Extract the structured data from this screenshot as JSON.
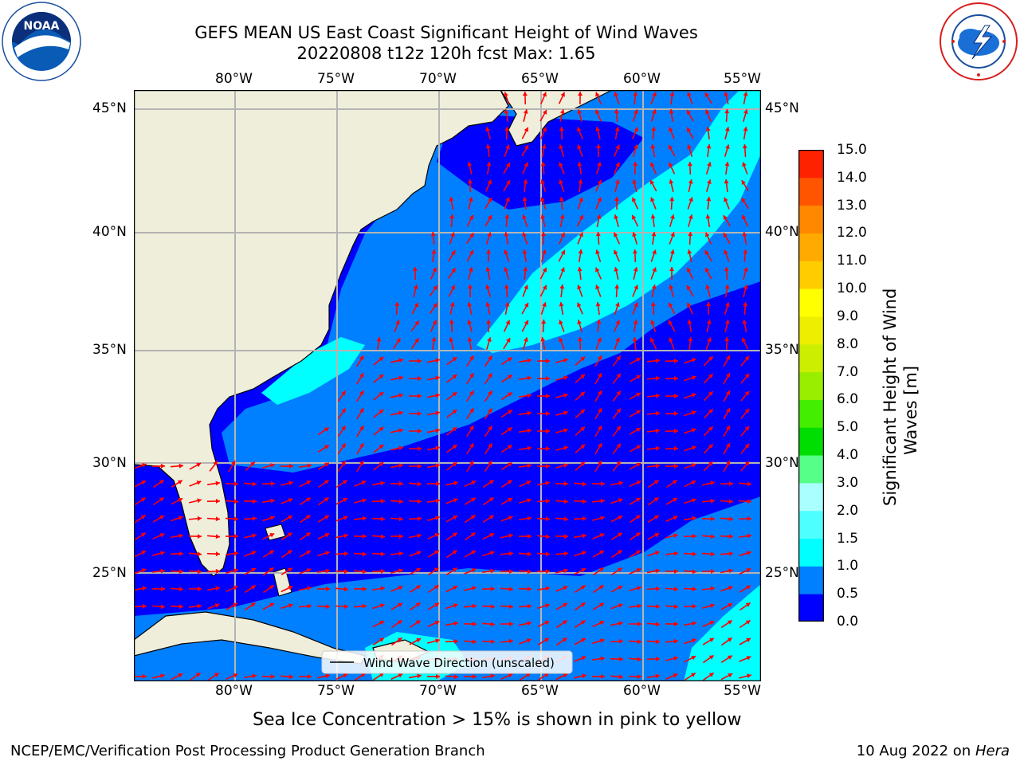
{
  "header": {
    "title_line1": "GEFS MEAN US East Coast Significant Height of Wind Waves",
    "title_line2": "20220808 t12z 120h fcst   Max: 1.65"
  },
  "logos": {
    "left": "NOAA",
    "left_ring_text": "NATIONAL OCEANIC AND ATMOSPHERIC ADMINISTRATION · U.S. DEPARTMENT OF COMMERCE",
    "right_ring_text": "NATIONAL WEATHER SERVICE"
  },
  "map": {
    "lon_labels": [
      "80°W",
      "75°W",
      "70°W",
      "65°W",
      "60°W",
      "55°W"
    ],
    "lat_labels": [
      "45°N",
      "40°N",
      "35°N",
      "30°N",
      "25°N"
    ],
    "legend_label": "Wind Wave Direction (unscaled)",
    "colors": {
      "land": "#efeedb",
      "ocean_low": "#0000ff",
      "ocean_mid": "#0080ff",
      "ocean_high": "#00ffff",
      "arrows": "#ff0000",
      "grid": "#b4b4b4"
    }
  },
  "colorbar": {
    "label": "Significant Height of Wind Waves [m]",
    "ticks": [
      "15.0",
      "14.0",
      "13.0",
      "12.0",
      "11.0",
      "10.0",
      "9.0",
      "8.0",
      "7.0",
      "6.0",
      "5.0",
      "4.0",
      "3.0",
      "2.0",
      "1.5",
      "1.0",
      "0.5",
      "0.0"
    ],
    "colors_bottom_to_top": [
      "#0000ff",
      "#0080ff",
      "#00ffff",
      "#4dffff",
      "#aaffff",
      "#55ff88",
      "#00dd00",
      "#44ee00",
      "#99ee00",
      "#ccee00",
      "#eeee00",
      "#ffff00",
      "#ffcc00",
      "#ffaa00",
      "#ff8800",
      "#ff5500",
      "#ff2200"
    ]
  },
  "note": "Sea Ice Concentration > 15% is shown in pink to yellow",
  "footer": {
    "left": "NCEP/EMC/Verification Post Processing Product Generation Branch",
    "right_date": "10 Aug 2022 on ",
    "right_host": "Hera"
  }
}
